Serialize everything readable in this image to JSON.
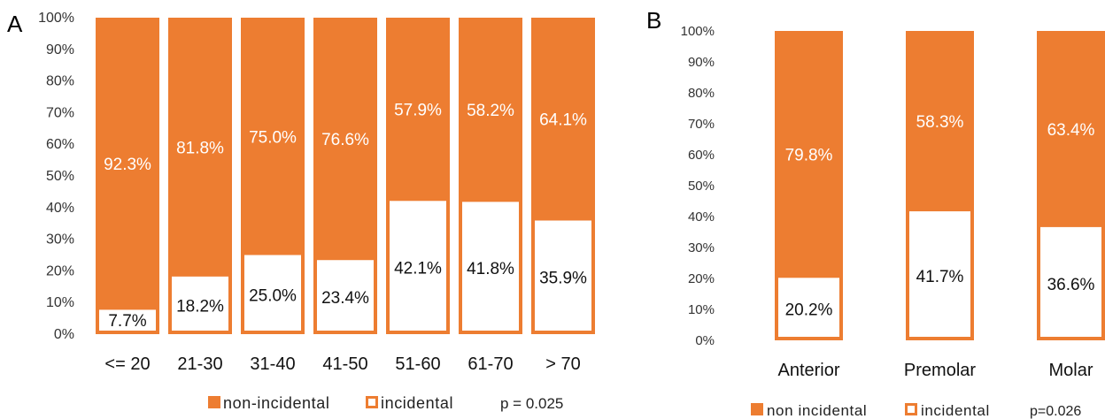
{
  "colors": {
    "non_incidental": "#ED7D31",
    "incidental": "#FFFFFF",
    "text": "#333333"
  },
  "chart_data": [
    {
      "panel_label": "A",
      "type": "bar",
      "stacked": true,
      "ylim": [
        0,
        100
      ],
      "yticks": [
        "0%",
        "10%",
        "20%",
        "30%",
        "40%",
        "50%",
        "60%",
        "70%",
        "80%",
        "90%",
        "100%"
      ],
      "categories": [
        "<= 20",
        "21-30",
        "31-40",
        "41-50",
        "51-60",
        "61-70",
        "> 70"
      ],
      "series": [
        {
          "name": "incidental",
          "values": [
            7.7,
            18.2,
            25.0,
            23.4,
            42.1,
            41.8,
            35.9
          ],
          "labels": [
            "7.7%",
            "18.2%",
            "25.0%",
            "23.4%",
            "42.1%",
            "41.8%",
            "35.9%"
          ]
        },
        {
          "name": "non-incidental",
          "values": [
            92.3,
            81.8,
            75.0,
            76.6,
            57.9,
            58.2,
            64.1
          ],
          "labels": [
            "92.3%",
            "81.8%",
            "75.0%",
            "76.6%",
            "57.9%",
            "58.2%",
            "64.1%"
          ]
        }
      ],
      "legend": [
        "non-incidental",
        "incidental"
      ],
      "annotation": "p = 0.025"
    },
    {
      "panel_label": "B",
      "type": "bar",
      "stacked": true,
      "ylim": [
        0,
        100
      ],
      "yticks": [
        "0%",
        "10%",
        "20%",
        "30%",
        "40%",
        "50%",
        "60%",
        "70%",
        "80%",
        "90%",
        "100%"
      ],
      "categories": [
        "Anterior",
        "Premolar",
        "Molar"
      ],
      "series": [
        {
          "name": "incidental",
          "values": [
            20.2,
            41.7,
            36.6
          ],
          "labels": [
            "20.2%",
            "41.7%",
            "36.6%"
          ]
        },
        {
          "name": "non incidental",
          "values": [
            79.8,
            58.3,
            63.4
          ],
          "labels": [
            "79.8%",
            "58.3%",
            "63.4%"
          ]
        }
      ],
      "legend": [
        "non incidental",
        "incidental"
      ],
      "annotation": "p=0.026"
    }
  ]
}
